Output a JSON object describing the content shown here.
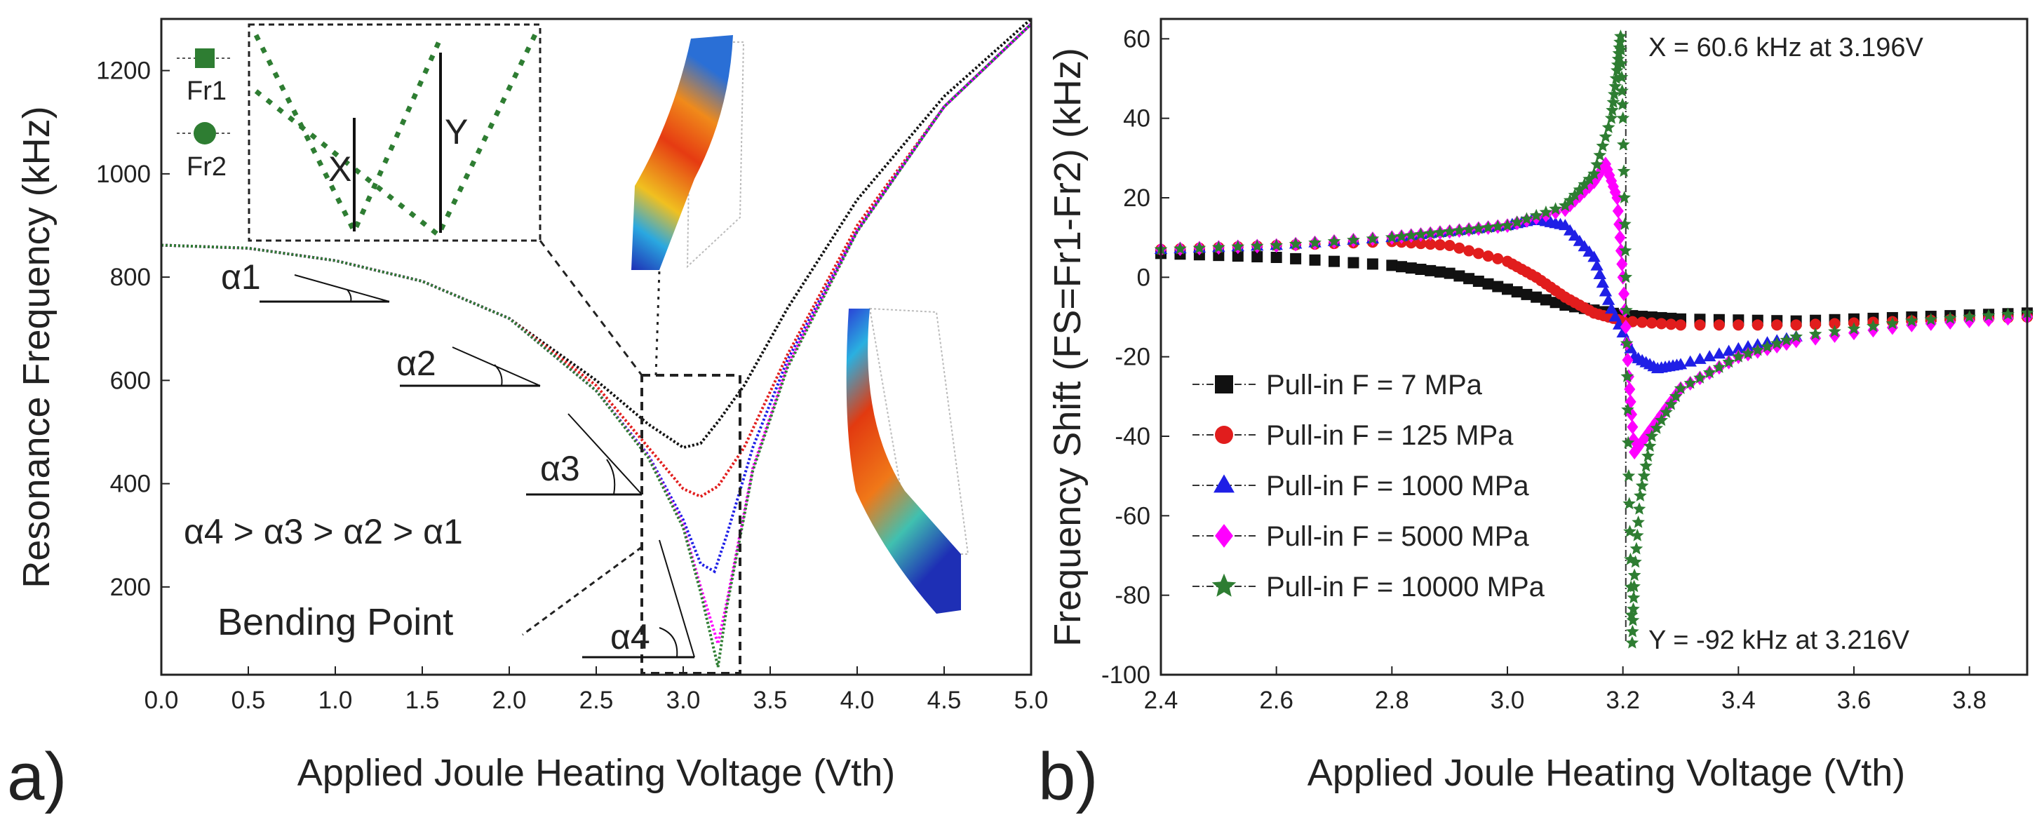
{
  "figure": {
    "panel_a_label": "a)",
    "panel_b_label": "b)"
  },
  "chart_data": [
    {
      "type": "line",
      "panel": "a",
      "title": "",
      "xlabel": "Applied Joule Heating Voltage (Vth)",
      "ylabel": "Resonance Frequency (kHz)",
      "xlim": [
        0,
        5
      ],
      "ylim": [
        30,
        1300
      ],
      "xticks": [
        "0.0",
        "0.5",
        "1.0",
        "1.5",
        "2.0",
        "2.5",
        "3.0",
        "3.5",
        "4.0",
        "4.5",
        "5.0"
      ],
      "xtick_values": [
        0,
        0.5,
        1,
        1.5,
        2,
        2.5,
        3,
        3.5,
        4,
        4.5,
        5
      ],
      "yticks": [
        "200",
        "400",
        "600",
        "800",
        "1000",
        "1200"
      ],
      "ytick_values": [
        200,
        400,
        600,
        800,
        1000,
        1200
      ],
      "legend": [
        {
          "label": "Fr1",
          "marker": "square",
          "color": "#2e7d32"
        },
        {
          "label": "Fr2",
          "marker": "circle",
          "color": "#2e7d32"
        }
      ],
      "series": [
        {
          "name": "7 MPa",
          "color": "#111111",
          "x": [
            0,
            0.5,
            1,
            1.5,
            2,
            2.5,
            2.8,
            3.0,
            3.1,
            3.2,
            3.35,
            3.6,
            4.0,
            4.5,
            5.0
          ],
          "y": [
            862,
            856,
            832,
            792,
            720,
            600,
            515,
            470,
            478,
            520,
            590,
            740,
            950,
            1150,
            1300
          ]
        },
        {
          "name": "125 MPa",
          "color": "#e11d1d",
          "x": [
            0,
            0.5,
            1,
            1.5,
            2,
            2.5,
            2.8,
            3.0,
            3.1,
            3.2,
            3.35,
            3.6,
            4.0,
            4.5,
            5.0
          ],
          "y": [
            862,
            856,
            832,
            792,
            720,
            590,
            470,
            390,
            375,
            395,
            470,
            650,
            900,
            1130,
            1290
          ]
        },
        {
          "name": "1000 MPa",
          "color": "#1f1fe6",
          "x": [
            0,
            0.5,
            1,
            1.5,
            2,
            2.5,
            2.8,
            3.0,
            3.1,
            3.18,
            3.25,
            3.4,
            3.6,
            4.0,
            4.5,
            5.0
          ],
          "y": [
            862,
            856,
            832,
            792,
            720,
            580,
            455,
            330,
            245,
            230,
            300,
            470,
            640,
            890,
            1130,
            1290
          ]
        },
        {
          "name": "5000 MPa",
          "color": "#ff00ff",
          "x": [
            0,
            0.5,
            1,
            1.5,
            2,
            2.5,
            2.8,
            3.0,
            3.1,
            3.2,
            3.25,
            3.4,
            3.6,
            4.0,
            4.5,
            5.0
          ],
          "y": [
            862,
            856,
            832,
            792,
            720,
            580,
            452,
            320,
            200,
            90,
            170,
            430,
            630,
            890,
            1130,
            1290
          ]
        },
        {
          "name": "10000 MPa",
          "color": "#2e7d32",
          "x": [
            0,
            0.5,
            1,
            1.5,
            2,
            2.5,
            2.8,
            3.0,
            3.1,
            3.2,
            3.25,
            3.4,
            3.6,
            4.0,
            4.5,
            5.0
          ],
          "y": [
            862,
            856,
            832,
            792,
            720,
            580,
            450,
            315,
            190,
            45,
            160,
            425,
            625,
            888,
            1130,
            1290
          ]
        }
      ],
      "annotations": {
        "alpha1": "α1",
        "alpha2": "α2",
        "alpha3": "α3",
        "alpha4": "α4",
        "relation": "α4 > α3 > α2 > α1",
        "bending_point": "Bending Point",
        "inset_x": "X",
        "inset_y": "Y"
      }
    },
    {
      "type": "scatter",
      "panel": "b",
      "title": "",
      "xlabel": "Applied Joule Heating Voltage (Vth)",
      "ylabel": "Frequency Shift (FS=Fr1-Fr2) (kHz)",
      "xlim": [
        2.4,
        3.9
      ],
      "ylim": [
        -100,
        65
      ],
      "xticks": [
        "2.4",
        "2.6",
        "2.8",
        "3.0",
        "3.2",
        "3.4",
        "3.6",
        "3.8"
      ],
      "xtick_values": [
        2.4,
        2.6,
        2.8,
        3.0,
        3.2,
        3.4,
        3.6,
        3.8
      ],
      "yticks": [
        "60",
        "40",
        "20",
        "0",
        "-20",
        "-40",
        "-60",
        "-80",
        "-100"
      ],
      "ytick_values": [
        60,
        40,
        20,
        0,
        -20,
        -40,
        -60,
        -80,
        -100
      ],
      "legend_position": "middle-left",
      "series": [
        {
          "name": "Pull-in F = 7 MPa",
          "marker": "square",
          "color": "#111111",
          "x": [
            2.4,
            2.6,
            2.8,
            2.9,
            3.0,
            3.1,
            3.2,
            3.3,
            3.5,
            3.7,
            3.9
          ],
          "y": [
            6,
            5,
            3,
            1,
            -3,
            -7,
            -9.5,
            -10.5,
            -11,
            -10,
            -9
          ]
        },
        {
          "name": "Pull-in F = 125 MPa",
          "marker": "circle",
          "color": "#e11d1d",
          "x": [
            2.4,
            2.6,
            2.8,
            2.9,
            3.0,
            3.05,
            3.1,
            3.15,
            3.2,
            3.3,
            3.5,
            3.7,
            3.9
          ],
          "y": [
            7,
            8,
            9,
            8,
            4,
            0,
            -5,
            -9,
            -11,
            -12,
            -12,
            -11,
            -10
          ]
        },
        {
          "name": "Pull-in F = 1000 MPa",
          "marker": "triangle",
          "color": "#1f1fe6",
          "x": [
            2.4,
            2.6,
            2.8,
            2.9,
            3.0,
            3.05,
            3.1,
            3.15,
            3.18,
            3.22,
            3.26,
            3.3,
            3.4,
            3.5
          ],
          "y": [
            7,
            8,
            10,
            11.5,
            13,
            14.5,
            13,
            5,
            -8,
            -20,
            -23,
            -22,
            -18,
            -15
          ]
        },
        {
          "name": "Pull-in F = 5000 MPa",
          "marker": "diamond",
          "color": "#ff00ff",
          "x": [
            2.4,
            2.6,
            2.8,
            2.9,
            3.0,
            3.1,
            3.15,
            3.17,
            3.19,
            3.2,
            3.21,
            3.22,
            3.25,
            3.3,
            3.4,
            3.5,
            3.7,
            3.9
          ],
          "y": [
            7,
            8,
            10,
            11.5,
            13,
            17,
            24,
            28.5,
            20,
            0,
            -25,
            -44,
            -38,
            -28,
            -20,
            -16,
            -12,
            -10
          ]
        },
        {
          "name": "Pull-in F = 10000 MPa",
          "marker": "star",
          "color": "#2e7d32",
          "x": [
            2.4,
            2.6,
            2.8,
            2.9,
            3.0,
            3.1,
            3.15,
            3.18,
            3.19,
            3.196,
            3.2,
            3.205,
            3.21,
            3.216,
            3.22,
            3.23,
            3.25,
            3.3,
            3.4,
            3.5,
            3.7,
            3.9
          ],
          "y": [
            7,
            8,
            10,
            11.5,
            13,
            18,
            26,
            40,
            52,
            60.6,
            40,
            0,
            -50,
            -92,
            -75,
            -55,
            -40,
            -28,
            -20,
            -15,
            -11,
            -9
          ]
        }
      ],
      "annotations": {
        "x_label": "X = 60.6 kHz at 3.196V",
        "y_label": "Y = -92 kHz at 3.216V"
      }
    }
  ]
}
